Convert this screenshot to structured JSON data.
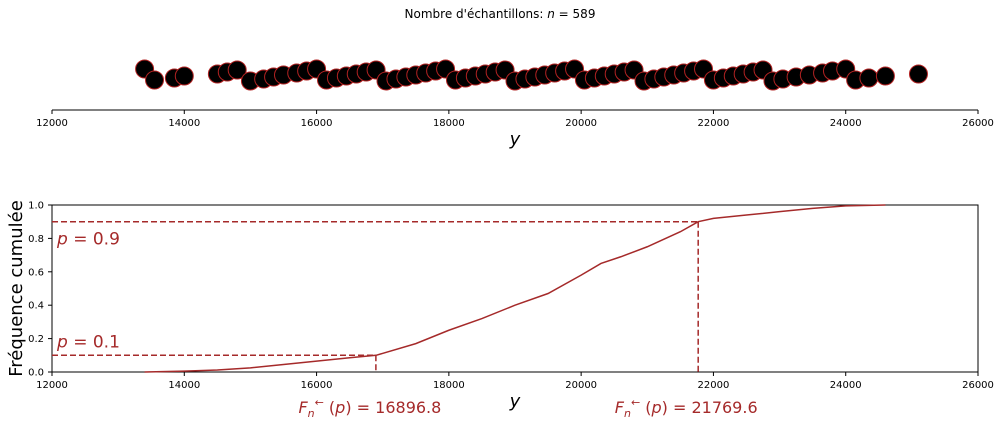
{
  "figure": {
    "title": "Nombre d'échantillons: n = 589",
    "title_prefix": "Nombre d'échantillons: ",
    "title_var": "n",
    "title_rest": " = 589"
  },
  "colors": {
    "marker_fill": "#000000",
    "marker_edge": "#b22222",
    "ecdf_line": "#a52a2a",
    "guide_line": "#a52a2a"
  },
  "chart_data": [
    {
      "type": "scatter",
      "title": "Nombre d'échantillons: n = 589",
      "xlabel": "y",
      "xlim": [
        12000,
        26000
      ],
      "xticks": [
        12000,
        14000,
        16000,
        18000,
        20000,
        22000,
        24000,
        26000
      ],
      "x_tick_labels": [
        "12000",
        "14000",
        "16000",
        "18000",
        "20000",
        "22000",
        "24000",
        "26000"
      ],
      "n": 589,
      "points_visible": [
        13400,
        13550,
        13850,
        14000,
        14500,
        14650,
        14800,
        15000,
        15200,
        15350,
        15500,
        15700,
        15850,
        16000,
        16150,
        16300,
        16450,
        16600,
        16750,
        16900,
        17050,
        17200,
        17350,
        17500,
        17650,
        17800,
        17950,
        18100,
        18250,
        18400,
        18550,
        18700,
        18850,
        19000,
        19150,
        19300,
        19450,
        19600,
        19750,
        19900,
        20050,
        20200,
        20350,
        20500,
        20650,
        20800,
        20950,
        21100,
        21250,
        21400,
        21550,
        21700,
        21850,
        22000,
        22150,
        22300,
        22450,
        22600,
        22750,
        22900,
        23050,
        23250,
        23450,
        23650,
        23800,
        24000,
        24150,
        24350,
        24600,
        25100
      ]
    },
    {
      "type": "line",
      "xlabel": "y",
      "ylabel": "Fréquence cumulée",
      "xlim": [
        12000,
        26000
      ],
      "ylim": [
        0,
        1
      ],
      "xticks": [
        12000,
        14000,
        16000,
        18000,
        20000,
        22000,
        24000,
        26000
      ],
      "x_tick_labels": [
        "12000",
        "14000",
        "16000",
        "18000",
        "20000",
        "22000",
        "24000",
        "26000"
      ],
      "yticks": [
        0,
        0.2,
        0.4,
        0.6,
        0.8,
        1.0
      ],
      "y_tick_labels": [
        "0.0",
        "0.2",
        "0.4",
        "0.6",
        "0.8",
        "1.0"
      ],
      "ecdf": {
        "x": [
          13400,
          14000,
          14500,
          15000,
          15500,
          16000,
          16500,
          16900,
          17500,
          18000,
          18500,
          19000,
          19500,
          20000,
          20300,
          20600,
          21000,
          21500,
          21770,
          22000,
          22500,
          23000,
          23500,
          24000,
          24600
        ],
        "y": [
          0.0,
          0.005,
          0.012,
          0.025,
          0.045,
          0.065,
          0.085,
          0.1,
          0.17,
          0.25,
          0.32,
          0.4,
          0.47,
          0.58,
          0.65,
          0.69,
          0.75,
          0.84,
          0.9,
          0.92,
          0.94,
          0.96,
          0.98,
          0.995,
          1.0
        ]
      },
      "quantiles": [
        {
          "p": 0.1,
          "p_label": "p = 0.1",
          "x": 16896.8,
          "x_label": "F_n^← (p) = 16896.8"
        },
        {
          "p": 0.9,
          "p_label": "p = 0.9",
          "x": 21769.6,
          "x_label": "F_n^← (p) = 21769.6"
        }
      ]
    }
  ],
  "texts": {
    "top_xlabel": "y",
    "bottom_xlabel": "y",
    "bottom_ylabel": "Fréquence cumulée",
    "p_low_label": "p = 0.1",
    "p_high_label": "p = 0.9",
    "q_low_value": "= 16896.8",
    "q_high_value": "= 21769.6"
  }
}
